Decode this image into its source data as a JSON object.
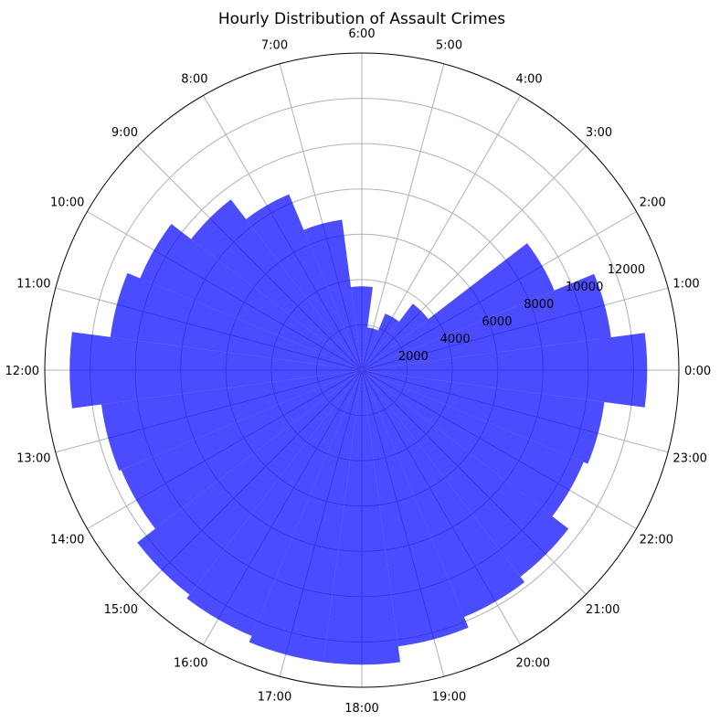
{
  "chart_data": {
    "type": "bar",
    "projection": "polar",
    "title": "Hourly Distribution of Assault Crimes",
    "categories": [
      "0:00",
      "1:00",
      "2:00",
      "3:00",
      "4:00",
      "5:00",
      "6:00",
      "7:00",
      "8:00",
      "9:00",
      "10:00",
      "11:00",
      "12:00",
      "13:00",
      "14:00",
      "15:00",
      "16:00",
      "17:00",
      "18:00",
      "19:00",
      "20:00",
      "21:00",
      "22:00",
      "23:00"
    ],
    "values": [
      12600,
      11100,
      9200,
      3700,
      2700,
      1900,
      3700,
      6700,
      8400,
      9500,
      10600,
      11200,
      12900,
      11600,
      11500,
      12500,
      12700,
      13000,
      13000,
      12300,
      11800,
      11500,
      10600,
      10800
    ],
    "rticks": [
      2000,
      4000,
      6000,
      8000,
      10000,
      12000
    ],
    "rlim": [
      0,
      14000
    ],
    "grid": true,
    "colors": {
      "bar": "#0000ff",
      "bar_alpha": 0.7,
      "grid": "#b0b0b0"
    }
  }
}
